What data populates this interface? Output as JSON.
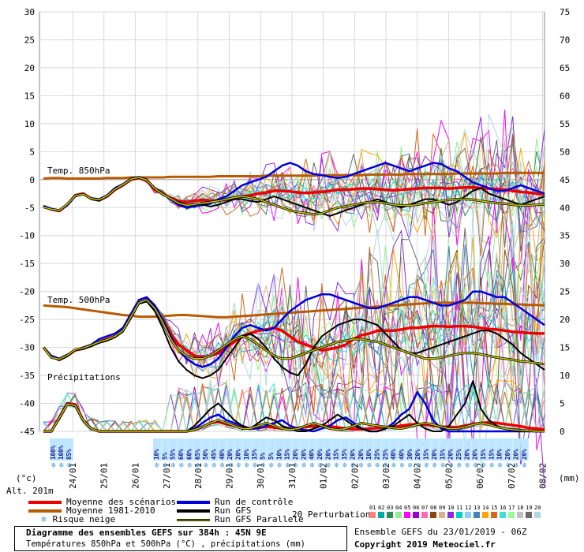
{
  "chart_data": {
    "type": "line",
    "left_axis": {
      "unit": "(°c)",
      "ticks": [
        30,
        25,
        20,
        15,
        10,
        5,
        0,
        -5,
        -10,
        -15,
        -20,
        -25,
        -30,
        -35,
        -40,
        -45
      ],
      "ylim": [
        -45,
        30
      ]
    },
    "right_axis": {
      "unit": "(mm)",
      "ticks": [
        75,
        70,
        65,
        60,
        55,
        50,
        45,
        40,
        35,
        30,
        25,
        20,
        15,
        10,
        5,
        0
      ],
      "ylim": [
        0,
        75
      ]
    },
    "altitude": "Alt. 201m",
    "x_dates": [
      "24/01",
      "25/01",
      "26/01",
      "27/01",
      "28/01",
      "29/01",
      "30/01",
      "31/01",
      "01/02",
      "02/02",
      "03/02",
      "04/02",
      "05/02",
      "06/02",
      "07/02",
      "08/02"
    ],
    "section_labels": {
      "t850": "Temp. 850hPa",
      "t500": "Temp. 500hPa",
      "precip": "Précipitations"
    },
    "snow_risk": {
      "early": [
        "100%",
        "100%",
        "85%"
      ],
      "late": [
        "10%",
        "5%",
        "55%",
        "60%",
        "60%",
        "65%",
        "50%",
        "45%",
        "40%",
        "20%",
        "20%",
        "10%",
        "15%",
        "5%",
        "5%",
        "10%",
        "15%",
        "20%",
        "20%",
        "40%",
        "20%",
        "20%",
        "15%",
        "15%",
        "20%",
        "20%",
        "10%",
        "25%",
        "25%",
        "40%",
        "40%",
        "30%",
        "20%",
        "15%",
        "20%",
        "15%",
        "20%",
        "25%",
        "20%",
        "20%",
        "15%",
        "15%",
        "10%",
        "20%",
        "20%",
        "20%"
      ]
    },
    "series": [
      {
        "name": "Moyenne des scénarios",
        "color": "#ee0000",
        "t850": [
          -4.8,
          -5.3,
          -5.6,
          -4.5,
          -2.8,
          -2.5,
          -3.4,
          -3.7,
          -3.0,
          -1.8,
          -1.0,
          0.0,
          0.3,
          -0.2,
          -1.8,
          -2.5,
          -3.3,
          -3.8,
          -4.0,
          -3.8,
          -3.6,
          -3.8,
          -3.7,
          -3.6,
          -3.2,
          -3.0,
          -2.8,
          -2.5,
          -2.3,
          -2.0,
          -2.0,
          -2.1,
          -2.3,
          -2.4,
          -2.3,
          -2.2,
          -2.0,
          -1.8,
          -1.8,
          -1.7,
          -1.6,
          -1.6,
          -1.7,
          -1.8,
          -1.9,
          -1.8,
          -1.7,
          -1.6,
          -1.5,
          -1.5,
          -1.5,
          -1.6,
          -1.5,
          -1.4,
          -1.4,
          -1.5,
          -1.6,
          -1.7,
          -1.8,
          -2.0,
          -2.2,
          -2.3,
          -2.5,
          -2.6
        ],
        "t500": [
          -30.0,
          -31.6,
          -32.2,
          -31.5,
          -30.5,
          -30.2,
          -29.7,
          -29.0,
          -28.5,
          -28.0,
          -27.0,
          -24.5,
          -22.0,
          -21.5,
          -23.0,
          -25.0,
          -27.5,
          -29.5,
          -30.5,
          -31.5,
          -31.8,
          -31.5,
          -31.0,
          -30.0,
          -29.0,
          -28.0,
          -27.5,
          -27.0,
          -26.8,
          -26.5,
          -27.0,
          -28.0,
          -29.0,
          -29.5,
          -30.0,
          -30.5,
          -30.3,
          -30.0,
          -29.5,
          -28.5,
          -27.8,
          -27.5,
          -27.0,
          -27.0,
          -27.0,
          -26.8,
          -26.5,
          -26.5,
          -26.3,
          -26.2,
          -26.2,
          -26.3,
          -26.2,
          -26.2,
          -26.3,
          -26.5,
          -26.7,
          -26.8,
          -27.0,
          -27.2,
          -27.3,
          -27.4,
          -27.5,
          -27.5
        ],
        "precip": [
          0,
          0,
          2.5,
          5.0,
          4.8,
          2.0,
          0.5,
          0,
          0,
          0,
          0,
          0,
          0,
          0,
          0,
          0,
          0,
          0,
          0,
          0.3,
          0.8,
          1.5,
          1.7,
          1.3,
          1.0,
          0.6,
          0.5,
          0.6,
          0.8,
          0.7,
          0.5,
          0.4,
          0.6,
          0.8,
          0.9,
          1.0,
          0.9,
          0.7,
          0.5,
          0.4,
          0.4,
          0.5,
          0.6,
          0.7,
          0.8,
          1.0,
          1.2,
          1.3,
          1.2,
          1.0,
          0.8,
          0.8,
          0.7,
          1.0,
          1.3,
          1.5,
          1.6,
          1.5,
          1.3,
          1.1,
          0.9,
          0.6,
          0.5,
          0.3
        ]
      },
      {
        "name": "Moyenne 1981-2010",
        "color": "#b85a00",
        "t850": [
          0.2,
          0.3,
          0.3,
          0.2,
          0.2,
          0.2,
          0.2,
          0.2,
          0.3,
          0.3,
          0.3,
          0.4,
          0.4,
          0.4,
          0.4,
          0.4,
          0.5,
          0.5,
          0.5,
          0.5,
          0.5,
          0.5,
          0.6,
          0.6,
          0.6,
          0.6,
          0.6,
          0.6,
          0.7,
          0.7,
          0.7,
          0.7,
          0.7,
          0.7,
          0.7,
          0.8,
          0.8,
          0.8,
          0.8,
          0.8,
          0.8,
          0.9,
          0.9,
          0.9,
          0.9,
          0.9,
          1.0,
          1.0,
          1.0,
          1.0,
          1.0,
          1.0,
          1.1,
          1.1,
          1.1,
          1.1,
          1.1,
          1.1,
          1.2,
          1.2,
          1.2,
          1.2,
          1.2,
          1.2
        ],
        "t500": [
          -22.5,
          -22.6,
          -22.7,
          -22.8,
          -23.0,
          -23.2,
          -23.4,
          -23.6,
          -23.8,
          -24.0,
          -24.2,
          -24.3,
          -24.5,
          -24.5,
          -24.5,
          -24.4,
          -24.3,
          -24.2,
          -24.2,
          -24.3,
          -24.4,
          -24.5,
          -24.6,
          -24.6,
          -24.5,
          -24.4,
          -24.3,
          -24.2,
          -24.1,
          -24.0,
          -23.9,
          -23.8,
          -23.7,
          -23.6,
          -23.5,
          -23.4,
          -23.3,
          -23.2,
          -23.1,
          -23.0,
          -22.9,
          -22.8,
          -22.7,
          -22.6,
          -22.5,
          -22.4,
          -22.3,
          -22.2,
          -22.1,
          -22.0,
          -22.0,
          -22.0,
          -22.0,
          -22.0,
          -22.0,
          -22.1,
          -22.1,
          -22.2,
          -22.2,
          -22.3,
          -22.3,
          -22.4,
          -22.4,
          -22.5
        ]
      },
      {
        "name": "Run de contrôle",
        "color": "#0000dd",
        "t850": [
          -4.7,
          -5.2,
          -5.5,
          -4.6,
          -3.0,
          -2.6,
          -3.3,
          -3.5,
          -2.8,
          -1.5,
          -0.8,
          0.2,
          0.5,
          0.0,
          -1.5,
          -2.5,
          -3.5,
          -4.5,
          -5.0,
          -4.8,
          -4.5,
          -4.3,
          -3.5,
          -3.0,
          -2.0,
          -1.0,
          -0.5,
          0.0,
          0.5,
          1.5,
          2.5,
          3.0,
          2.5,
          1.5,
          1.0,
          0.8,
          0.5,
          0.3,
          0.5,
          1.0,
          1.5,
          2.0,
          2.5,
          3.0,
          2.5,
          2.0,
          1.5,
          2.0,
          2.5,
          3.0,
          2.8,
          2.0,
          1.5,
          0.5,
          -0.5,
          -1.0,
          -1.5,
          -2.0,
          -2.0,
          -1.5,
          -1.0,
          -1.5,
          -2.0,
          -2.5
        ],
        "t500": [
          -30.0,
          -31.5,
          -32.0,
          -31.3,
          -30.5,
          -30.0,
          -29.5,
          -28.5,
          -28.0,
          -27.5,
          -26.5,
          -24.0,
          -21.5,
          -21.0,
          -22.5,
          -25.0,
          -28.0,
          -30.5,
          -32.0,
          -33.0,
          -33.5,
          -33.0,
          -32.0,
          -30.0,
          -28.0,
          -26.5,
          -26.0,
          -26.5,
          -27.0,
          -26.5,
          -25.0,
          -23.5,
          -22.5,
          -21.5,
          -21.0,
          -20.5,
          -20.5,
          -21.0,
          -21.5,
          -22.0,
          -22.5,
          -23.0,
          -23.0,
          -22.5,
          -22.0,
          -21.5,
          -21.0,
          -21.0,
          -21.5,
          -22.0,
          -22.5,
          -22.5,
          -22.0,
          -21.5,
          -20.0,
          -20.0,
          -20.5,
          -21.0,
          -21.0,
          -22.0,
          -23.0,
          -24.0,
          -25.0,
          -26.0
        ],
        "precip": [
          0,
          0,
          2.5,
          5.0,
          4.5,
          2.0,
          0.5,
          0,
          0,
          0,
          0,
          0,
          0,
          0,
          0,
          0,
          0,
          0,
          0,
          0.5,
          1.5,
          2.5,
          3.0,
          2.0,
          1.5,
          1.0,
          0.5,
          0.5,
          1.0,
          1.5,
          2.0,
          1.0,
          0.5,
          0.2,
          0,
          0.5,
          1.0,
          2.0,
          2.5,
          1.5,
          0.5,
          0,
          0,
          0.5,
          1.5,
          3.0,
          4.0,
          7.0,
          5.0,
          2.0,
          0.5,
          0,
          0,
          0,
          0,
          0,
          0,
          0,
          0,
          0,
          0,
          0,
          0,
          0
        ]
      },
      {
        "name": "Run GFS",
        "color": "#000000",
        "t850": [
          -4.9,
          -5.4,
          -5.6,
          -4.5,
          -2.8,
          -2.5,
          -3.5,
          -3.8,
          -3.0,
          -1.8,
          -1.0,
          0.2,
          0.5,
          0.0,
          -1.5,
          -2.5,
          -3.5,
          -4.0,
          -4.5,
          -4.3,
          -4.5,
          -4.8,
          -4.5,
          -4.0,
          -3.5,
          -3.5,
          -3.8,
          -4.0,
          -3.5,
          -3.0,
          -3.5,
          -4.0,
          -4.5,
          -5.0,
          -5.5,
          -6.0,
          -6.5,
          -6.0,
          -5.5,
          -5.0,
          -4.5,
          -4.0,
          -3.5,
          -4.0,
          -4.5,
          -5.0,
          -4.5,
          -4.0,
          -3.5,
          -3.5,
          -4.0,
          -4.5,
          -4.0,
          -3.0,
          -2.0,
          -1.5,
          -2.5,
          -3.0,
          -3.5,
          -4.0,
          -4.5,
          -4.0,
          -3.5,
          -3.0
        ],
        "t500": [
          -30.0,
          -31.7,
          -32.3,
          -31.6,
          -30.5,
          -30.3,
          -29.8,
          -29.2,
          -28.8,
          -28.2,
          -27.2,
          -24.8,
          -22.2,
          -21.8,
          -23.5,
          -26.5,
          -30.0,
          -32.5,
          -34.0,
          -35.0,
          -35.5,
          -35.0,
          -34.0,
          -32.0,
          -30.0,
          -28.0,
          -27.5,
          -28.5,
          -30.0,
          -32.0,
          -33.5,
          -34.5,
          -35.0,
          -33.0,
          -30.0,
          -28.0,
          -27.0,
          -26.0,
          -25.5,
          -25.0,
          -25.0,
          -25.5,
          -26.0,
          -27.5,
          -29.0,
          -30.5,
          -31.0,
          -31.0,
          -30.5,
          -30.0,
          -29.5,
          -29.0,
          -28.5,
          -28.0,
          -27.5,
          -27.0,
          -27.0,
          -27.5,
          -28.5,
          -29.5,
          -31.0,
          -32.0,
          -33.0,
          -34.0
        ],
        "precip": [
          0,
          0,
          2.3,
          4.8,
          4.5,
          2.0,
          0.5,
          0,
          0,
          0,
          0,
          0,
          0,
          0,
          0,
          0,
          0,
          0,
          0,
          1.0,
          2.5,
          4.0,
          5.0,
          3.5,
          2.0,
          1.0,
          0.5,
          1.5,
          2.5,
          2.0,
          1.0,
          0.5,
          0,
          0,
          0.5,
          1.0,
          2.0,
          3.0,
          2.0,
          1.0,
          0.5,
          0,
          0,
          0.5,
          1.0,
          2.0,
          3.0,
          1.5,
          0.5,
          0,
          0,
          1.0,
          3.0,
          5.0,
          9.0,
          4.0,
          2.0,
          1.0,
          0.5,
          0.2,
          0,
          0,
          0,
          0
        ]
      },
      {
        "name": "Run GFS Parallele",
        "color": "#c8c800",
        "t850": [
          -4.9,
          -5.3,
          -5.5,
          -4.4,
          -2.9,
          -2.6,
          -3.4,
          -3.6,
          -2.9,
          -1.7,
          -0.9,
          0.1,
          0.4,
          -0.1,
          -1.6,
          -2.6,
          -3.4,
          -4.2,
          -4.6,
          -4.4,
          -4.2,
          -4.0,
          -3.8,
          -3.5,
          -3.2,
          -3.0,
          -3.2,
          -3.5,
          -4.0,
          -4.5,
          -5.0,
          -5.5,
          -5.8,
          -6.0,
          -6.2,
          -6.0,
          -5.5,
          -5.0,
          -4.8,
          -4.5,
          -4.2,
          -4.0,
          -4.0,
          -4.2,
          -4.5,
          -4.6,
          -4.6,
          -4.5,
          -4.2,
          -4.0,
          -3.8,
          -3.6,
          -3.5,
          -3.5,
          -3.6,
          -3.8,
          -4.0,
          -4.2,
          -4.3,
          -4.5,
          -4.6,
          -4.6,
          -4.5,
          -4.4
        ],
        "t500": [
          -30.0,
          -31.8,
          -32.1,
          -31.4,
          -30.4,
          -30.1,
          -29.6,
          -29.0,
          -28.6,
          -28.0,
          -27.0,
          -24.5,
          -22.0,
          -21.5,
          -23.0,
          -25.5,
          -28.5,
          -30.5,
          -31.5,
          -32.0,
          -32.0,
          -31.5,
          -30.5,
          -29.5,
          -28.5,
          -28.0,
          -28.5,
          -29.5,
          -30.5,
          -31.5,
          -32.0,
          -32.0,
          -31.5,
          -31.0,
          -30.5,
          -30.0,
          -29.5,
          -29.0,
          -28.8,
          -28.5,
          -28.5,
          -28.8,
          -29.0,
          -29.5,
          -30.0,
          -30.5,
          -31.0,
          -31.5,
          -32.0,
          -32.0,
          -31.8,
          -31.5,
          -31.2,
          -31.0,
          -31.0,
          -31.2,
          -31.5,
          -31.8,
          -32.0,
          -32.2,
          -32.5,
          -32.6,
          -32.8,
          -33.0
        ],
        "precip": [
          0,
          0,
          2.4,
          4.9,
          4.6,
          2.0,
          0.5,
          0,
          0,
          0,
          0,
          0,
          0,
          0,
          0,
          0,
          0,
          0,
          0,
          0.3,
          0.8,
          1.5,
          2.0,
          1.5,
          1.0,
          0.5,
          0.5,
          1.0,
          1.5,
          1.0,
          0.5,
          0.3,
          0.5,
          1.0,
          1.5,
          1.0,
          0.5,
          0.3,
          0.5,
          1.0,
          1.5,
          1.2,
          1.0,
          0.8,
          0.6,
          0.5,
          0.8,
          1.2,
          1.5,
          1.2,
          0.8,
          0.5,
          0.5,
          0.8,
          1.2,
          1.5,
          1.2,
          0.8,
          0.5,
          0.3,
          0.2,
          0.1,
          0,
          0
        ]
      }
    ],
    "perturbations": {
      "label": "20 Perturbations",
      "numbers": [
        "01",
        "02",
        "03",
        "04",
        "05",
        "06",
        "07",
        "08",
        "09",
        "10",
        "11",
        "12",
        "13",
        "14",
        "15",
        "16",
        "17",
        "18",
        "19",
        "20"
      ]
    },
    "title": "Diagramme des ensembles GEFS sur 384h : 45N 9E",
    "subtitle": "Températures 850hPa et 500hPa (°C) , précipitations (mm)",
    "run_info": "Ensemble GEFS du 23/01/2019 - 06Z",
    "copyright": "Copyright 2019 Meteociel.fr",
    "snow_legend": "Risque neige"
  },
  "colors": {
    "perturbations": [
      "#ff8080",
      "#00aaaa",
      "#2e8b57",
      "#90ee90",
      "#ff00ff",
      "#9400d3",
      "#ff69b4",
      "#8b4513",
      "#d2b48c",
      "#8a2be2",
      "#00ced1",
      "#87cefa",
      "#4682b4",
      "#ffa500",
      "#d2691e",
      "#40e0d0",
      "#98fb98",
      "#c0c0c0",
      "#696969",
      "#add8e6"
    ]
  }
}
